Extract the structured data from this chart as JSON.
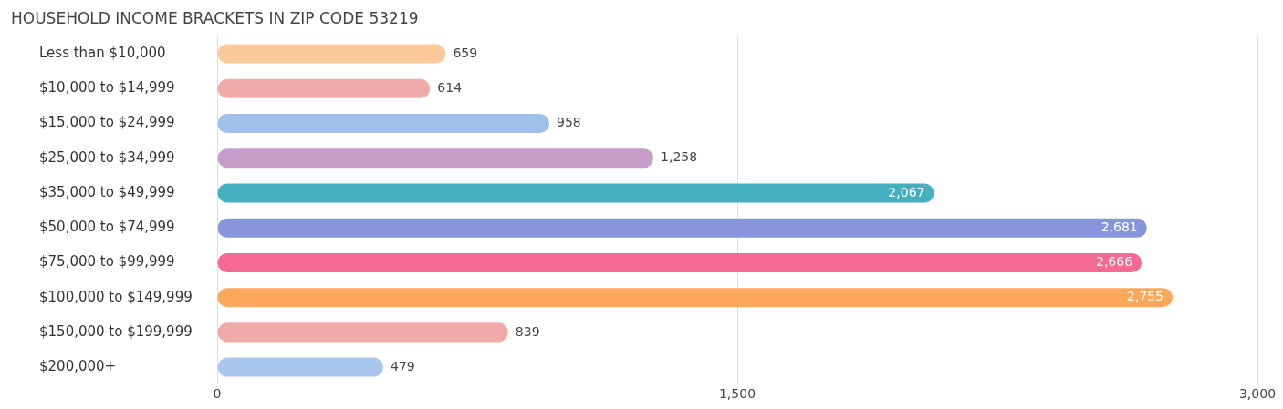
{
  "chart_data": {
    "type": "bar",
    "orientation": "horizontal",
    "title": "HOUSEHOLD INCOME BRACKETS IN ZIP CODE 53219",
    "categories": [
      "Less than $10,000",
      "$10,000 to $14,999",
      "$15,000 to $24,999",
      "$25,000 to $34,999",
      "$35,000 to $49,999",
      "$50,000 to $74,999",
      "$75,000 to $99,999",
      "$100,000 to $149,999",
      "$150,000 to $199,999",
      "$200,000+"
    ],
    "values": [
      659,
      614,
      958,
      1258,
      2067,
      2681,
      2666,
      2755,
      839,
      479
    ],
    "colors": [
      "#fcc99b",
      "#f0aba8",
      "#9fc0e8",
      "#c59fc9",
      "#45b1c0",
      "#8796dc",
      "#f46a95",
      "#fba85a",
      "#f0aba8",
      "#a9c6ee"
    ],
    "value_labels": [
      "659",
      "614",
      "958",
      "1,258",
      "2,067",
      "2,681",
      "2,666",
      "2,755",
      "839",
      "479"
    ],
    "xlim": [
      0,
      3000
    ],
    "xticks": [
      0,
      {
        "value": 1500,
        "label": "1,500"
      },
      {
        "value": 3000,
        "label": "3,000"
      }
    ],
    "grid": "x",
    "legend": false
  }
}
